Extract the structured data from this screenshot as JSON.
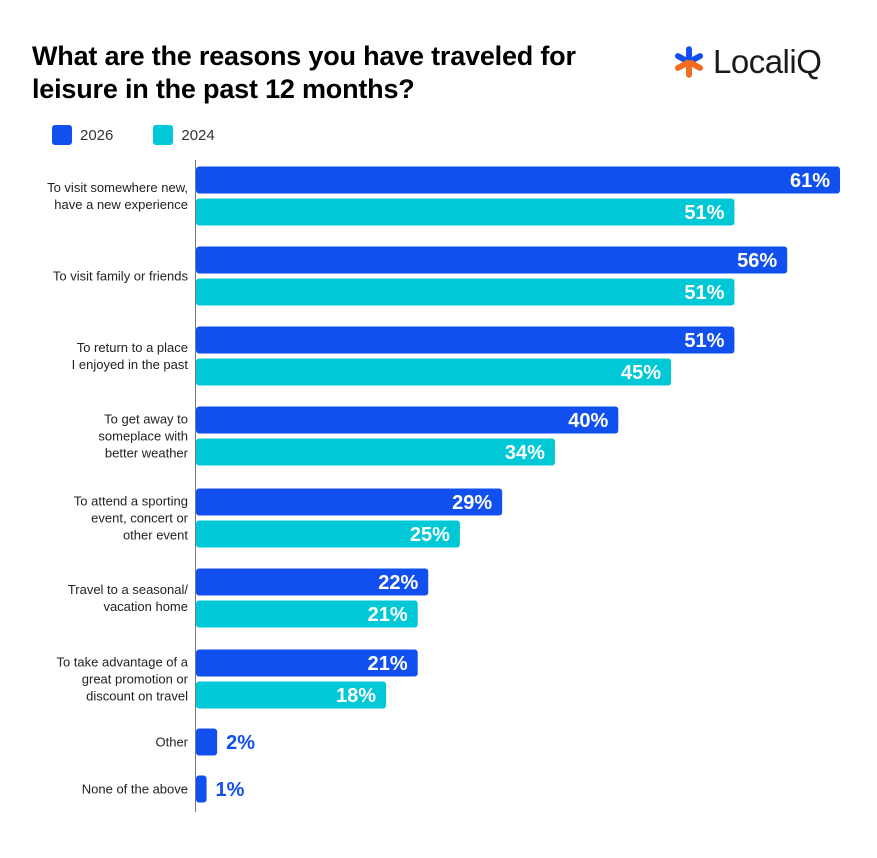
{
  "chart_data": {
    "type": "bar",
    "orientation": "horizontal",
    "title": "What are the reasons you have traveled for leisure in the past 12 months?",
    "categories": [
      [
        "To visit somewhere new,",
        "have a new experience"
      ],
      [
        "To visit family or friends"
      ],
      [
        "To return to a place",
        "I enjoyed in the past"
      ],
      [
        "To get away to",
        "someplace with",
        "better weather"
      ],
      [
        "To attend a sporting",
        "event, concert or",
        "other event"
      ],
      [
        "Travel to a seasonal/",
        "vacation home"
      ],
      [
        "To take advantage of a",
        "great promotion or",
        "discount on travel"
      ],
      [
        "Other"
      ],
      [
        "None of the above"
      ]
    ],
    "series": [
      {
        "name": "2026",
        "color": "#1150EF",
        "values": [
          61,
          56,
          51,
          40,
          29,
          22,
          21,
          2,
          1
        ]
      },
      {
        "name": "2024",
        "color": "#00C8D7",
        "values": [
          51,
          51,
          45,
          34,
          25,
          21,
          18,
          null,
          null
        ]
      }
    ],
    "value_suffix": "%",
    "xlim": [
      0,
      61
    ],
    "legend_position": "top-left",
    "grid": false
  },
  "brand": {
    "name": "LocaliQ",
    "icon": "asterisk-logo-icon",
    "colors": {
      "blue": "#1150EF",
      "orange": "#F26B21"
    }
  }
}
